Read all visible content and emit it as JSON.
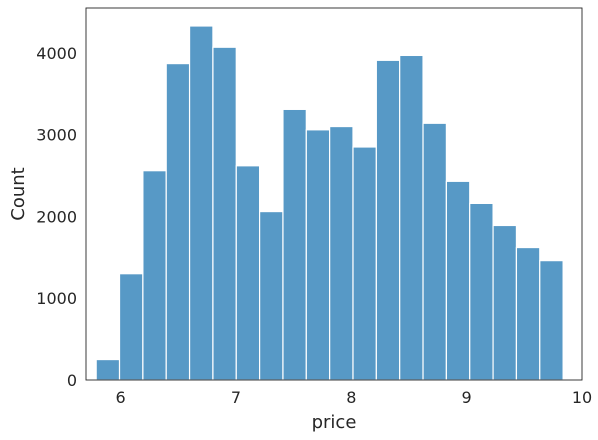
{
  "chart_data": {
    "type": "bar",
    "xlabel": "price",
    "ylabel": "Count",
    "xlim": [
      5.7,
      10.0
    ],
    "ylim": [
      0,
      4550
    ],
    "x_ticks": [
      6,
      7,
      8,
      9,
      10
    ],
    "y_ticks": [
      0,
      1000,
      2000,
      3000,
      4000
    ],
    "bin_width": 0.2024,
    "bins": [
      {
        "start": 5.7883,
        "count": 250
      },
      {
        "start": 5.9907,
        "count": 1300
      },
      {
        "start": 6.1931,
        "count": 2560
      },
      {
        "start": 6.3955,
        "count": 3870
      },
      {
        "start": 6.5979,
        "count": 4330
      },
      {
        "start": 6.8003,
        "count": 4070
      },
      {
        "start": 7.0027,
        "count": 2620
      },
      {
        "start": 7.2051,
        "count": 2060
      },
      {
        "start": 7.4075,
        "count": 3310
      },
      {
        "start": 7.6099,
        "count": 3060
      },
      {
        "start": 7.8123,
        "count": 3100
      },
      {
        "start": 8.0147,
        "count": 2850
      },
      {
        "start": 8.2171,
        "count": 3910
      },
      {
        "start": 8.4195,
        "count": 3970
      },
      {
        "start": 8.6219,
        "count": 3140
      },
      {
        "start": 8.8243,
        "count": 2430
      },
      {
        "start": 9.0267,
        "count": 2160
      },
      {
        "start": 9.2291,
        "count": 1890
      },
      {
        "start": 9.4315,
        "count": 1620
      },
      {
        "start": 9.6339,
        "count": 1460
      }
    ],
    "bar_color": "#5799c6",
    "bar_edge_color": "#ffffff",
    "grid": false,
    "legend": "none"
  }
}
